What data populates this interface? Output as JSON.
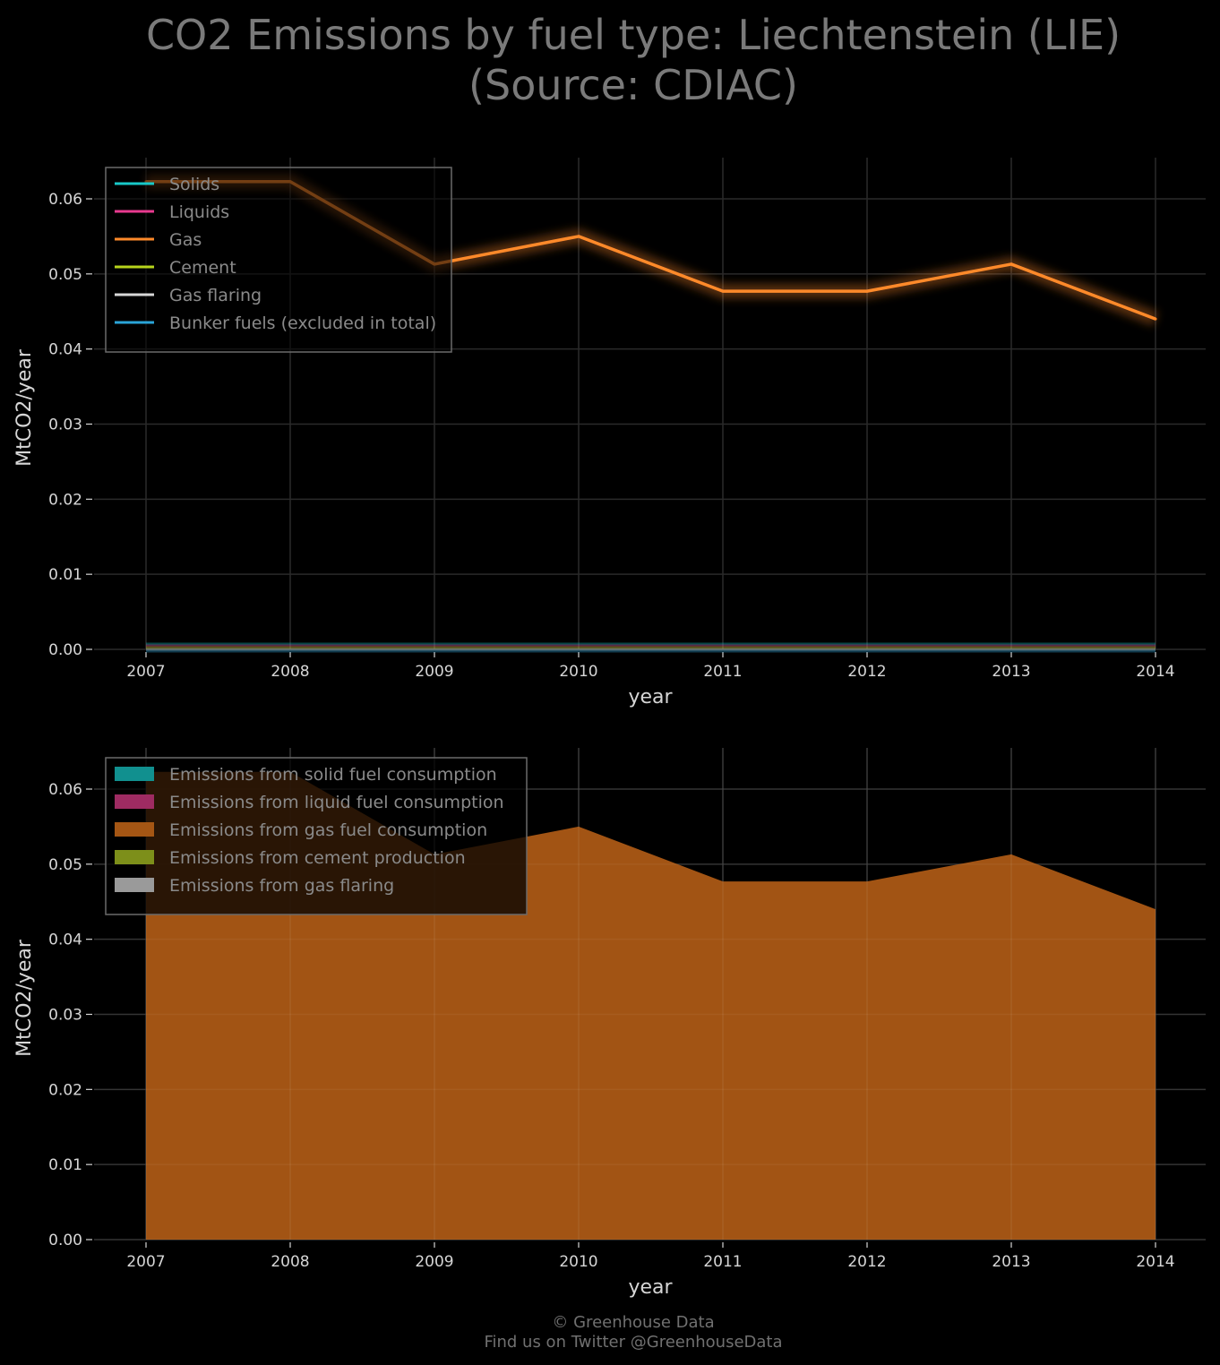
{
  "title_line1": "CO2 Emissions by fuel type: Liechtenstein (LIE)",
  "title_line2": "(Source: CDIAC)",
  "footer_line1": "© Greenhouse Data",
  "footer_line2": "Find us on Twitter @GreenhouseData",
  "colors": {
    "background": "#000000",
    "grid": "#2a2a2a",
    "solids": "#18c9c9",
    "liquids": "#e83a8f",
    "gas": "#ff8a2a",
    "cement": "#b8d41c",
    "flaring": "#d8d8d8",
    "bunker": "#2aa4d8",
    "gas_area": "#a55614",
    "solid_area": "#11908f",
    "liquid_area": "#9e2b62",
    "cement_area": "#7d8f1a",
    "flaring_area": "#9a9a9a"
  },
  "chart_data": [
    {
      "type": "line",
      "title": "",
      "xlabel": "year",
      "ylabel": "MtCO2/year",
      "x": [
        2007,
        2008,
        2009,
        2010,
        2011,
        2012,
        2013,
        2014
      ],
      "xticks": [
        "2007",
        "2008",
        "2009",
        "2010",
        "2011",
        "2012",
        "2013",
        "2014"
      ],
      "yticks": [
        "0.00",
        "0.01",
        "0.02",
        "0.03",
        "0.04",
        "0.05",
        "0.06"
      ],
      "ylim": [
        0,
        0.0655
      ],
      "grid": true,
      "legend_position": "top-left",
      "series": [
        {
          "name": "Solids",
          "color_key": "solids",
          "values": [
            0,
            0,
            0,
            0,
            0,
            0,
            0,
            0
          ]
        },
        {
          "name": "Liquids",
          "color_key": "liquids",
          "values": [
            0,
            0,
            0,
            0,
            0,
            0,
            0,
            0
          ]
        },
        {
          "name": "Gas",
          "color_key": "gas",
          "values": [
            0.0623,
            0.0623,
            0.0513,
            0.055,
            0.0477,
            0.0477,
            0.0513,
            0.044
          ]
        },
        {
          "name": "Cement",
          "color_key": "cement",
          "values": [
            0,
            0,
            0,
            0,
            0,
            0,
            0,
            0
          ]
        },
        {
          "name": "Gas flaring",
          "color_key": "flaring",
          "values": [
            0,
            0,
            0,
            0,
            0,
            0,
            0,
            0
          ]
        },
        {
          "name": "Bunker fuels (excluded in total)",
          "color_key": "bunker",
          "values": [
            0,
            0,
            0,
            0,
            0,
            0,
            0,
            0
          ]
        }
      ]
    },
    {
      "type": "area",
      "title": "",
      "xlabel": "year",
      "ylabel": "MtCO2/year",
      "x": [
        2007,
        2008,
        2009,
        2010,
        2011,
        2012,
        2013,
        2014
      ],
      "xticks": [
        "2007",
        "2008",
        "2009",
        "2010",
        "2011",
        "2012",
        "2013",
        "2014"
      ],
      "yticks": [
        "0.00",
        "0.01",
        "0.02",
        "0.03",
        "0.04",
        "0.05",
        "0.06"
      ],
      "ylim": [
        0,
        0.0655
      ],
      "grid": true,
      "stacked": true,
      "legend_position": "top-left",
      "series": [
        {
          "name": "Emissions from solid fuel consumption",
          "color_key": "solid_area",
          "values": [
            0,
            0,
            0,
            0,
            0,
            0,
            0,
            0
          ]
        },
        {
          "name": "Emissions from liquid fuel consumption",
          "color_key": "liquid_area",
          "values": [
            0,
            0,
            0,
            0,
            0,
            0,
            0,
            0
          ]
        },
        {
          "name": "Emissions from gas fuel consumption",
          "color_key": "gas_area",
          "values": [
            0.0623,
            0.0623,
            0.0513,
            0.055,
            0.0477,
            0.0477,
            0.0513,
            0.044
          ]
        },
        {
          "name": "Emissions from cement production",
          "color_key": "cement_area",
          "values": [
            0,
            0,
            0,
            0,
            0,
            0,
            0,
            0
          ]
        },
        {
          "name": "Emissions from gas flaring",
          "color_key": "flaring_area",
          "values": [
            0,
            0,
            0,
            0,
            0,
            0,
            0,
            0
          ]
        }
      ]
    }
  ]
}
